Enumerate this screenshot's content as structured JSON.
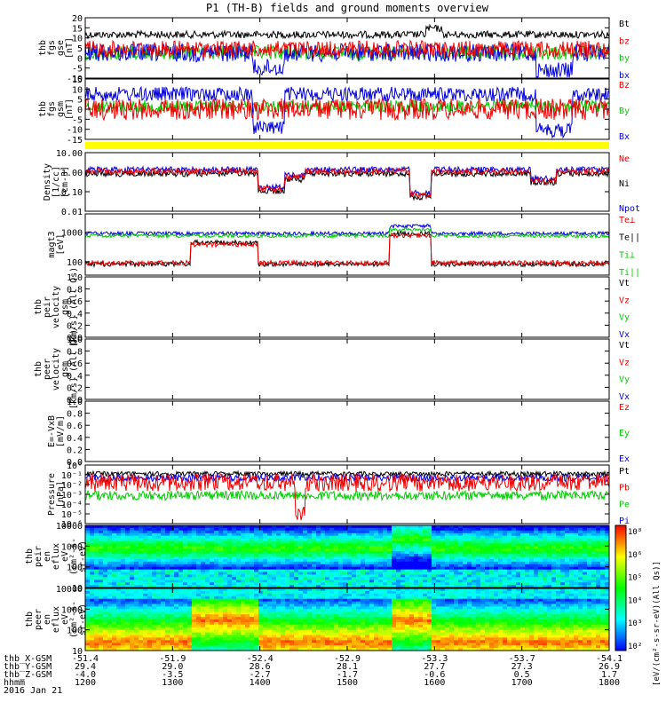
{
  "chart_data": {
    "type": "line",
    "title": "P1 (TH-B) fields and ground moments overview",
    "date": "2016 Jan 21",
    "x_ticks": [
      "1200",
      "1300",
      "1400",
      "1500",
      "1600",
      "1700",
      "1800"
    ],
    "ephemeris": [
      {
        "label": "thb_X-GSM",
        "values": [
          "-51.4",
          "-51.9",
          "-52.4",
          "-52.9",
          "-53.3",
          "-53.7",
          "-54.1"
        ]
      },
      {
        "label": "thb_Y-GSM",
        "values": [
          "29.4",
          "29.0",
          "28.6",
          "28.1",
          "27.7",
          "27.3",
          "26.9"
        ]
      },
      {
        "label": "thb_Z-GSM",
        "values": [
          "-4.0",
          "-3.5",
          "-2.7",
          "-1.7",
          "-0.6",
          "0.5",
          "1.7"
        ]
      },
      {
        "label": "hhmm",
        "values": [
          "1200",
          "1300",
          "1400",
          "1500",
          "1600",
          "1700",
          "1800"
        ]
      }
    ],
    "panels": [
      {
        "id": "fgs_gse",
        "ylabel": [
          "thb",
          "fgs",
          "gse",
          "[nT]"
        ],
        "ticks": [
          "20",
          "15",
          "10",
          "5",
          "0",
          "-5",
          "-10"
        ],
        "legend": [
          {
            "name": "Bt",
            "color": "#000000"
          },
          {
            "name": "bz",
            "color": "#ee0000"
          },
          {
            "name": "by",
            "color": "#00cc00"
          },
          {
            "name": "bx",
            "color": "#0000dd"
          }
        ]
      },
      {
        "id": "fgs_gsm",
        "ylabel": [
          "thb",
          "fgs",
          "gsm",
          "[nT]"
        ],
        "ticks": [
          "15",
          "10",
          "5",
          "0",
          "-5",
          "-10",
          "-15"
        ],
        "legend": [
          {
            "name": "Bz",
            "color": "#ee0000"
          },
          {
            "name": "By",
            "color": "#00cc00"
          },
          {
            "name": "Bx",
            "color": "#0000dd"
          }
        ]
      },
      {
        "id": "density",
        "ylabel": [
          "Density",
          "[1/cc]",
          "[cm-3]"
        ],
        "ticks": [
          "10.00",
          "1.00",
          "0.10",
          "0.01"
        ],
        "scale": "log",
        "legend": [
          {
            "name": "Ne",
            "color": "#ee0000"
          },
          {
            "name": "Ni",
            "color": "#000000"
          },
          {
            "name": "Npot",
            "color": "#0000dd"
          }
        ]
      },
      {
        "id": "temperature",
        "ylabel": [
          "magt3",
          "[eV]"
        ],
        "ticks": [
          "1000",
          "100"
        ],
        "scale": "log",
        "legend": [
          {
            "name": "Te⊥",
            "color": "#ee0000"
          },
          {
            "name": "Te||",
            "color": "#000000"
          },
          {
            "name": "Ti⊥",
            "color": "#00cc00"
          },
          {
            "name": "Ti||",
            "color": "#00cc00"
          }
        ]
      },
      {
        "id": "peir_velocity",
        "ylabel": [
          "thb",
          "peir",
          "velocity",
          "gsm",
          "[km/s] (All Qs)"
        ],
        "ticks": [
          "1.0",
          "0.8",
          "0.6",
          "0.4",
          "0.2",
          "0.0"
        ],
        "legend": [
          {
            "name": "Vt",
            "color": "#000000"
          },
          {
            "name": "Vz",
            "color": "#ee0000"
          },
          {
            "name": "Vy",
            "color": "#00cc00"
          },
          {
            "name": "Vx",
            "color": "#0000dd"
          }
        ]
      },
      {
        "id": "peer_velocity",
        "ylabel": [
          "thb",
          "peer",
          "velocity",
          "gsm",
          "[km/s] (All Qs)"
        ],
        "ticks": [
          "1.0",
          "0.8",
          "0.6",
          "0.4",
          "0.2",
          "0.0"
        ],
        "legend": [
          {
            "name": "Vt",
            "color": "#000000"
          },
          {
            "name": "Vz",
            "color": "#ee0000"
          },
          {
            "name": "Vy",
            "color": "#00cc00"
          },
          {
            "name": "Vx",
            "color": "#0000dd"
          }
        ]
      },
      {
        "id": "efield",
        "ylabel": [
          "E=-VxB",
          "[mV/m]"
        ],
        "ticks": [
          "1.0",
          "0.8",
          "0.6",
          "0.4",
          "0.2",
          "0.0"
        ],
        "legend": [
          {
            "name": "Ez",
            "color": "#ee0000"
          },
          {
            "name": "Ey",
            "color": "#00cc00"
          },
          {
            "name": "Ex",
            "color": "#0000dd"
          }
        ]
      },
      {
        "id": "pressure",
        "ylabel": [
          "Pressure",
          "[nPa]"
        ],
        "ticks": [
          "10⁰",
          "10⁻¹",
          "10⁻²",
          "10⁻³",
          "10⁻⁴",
          "10⁻⁵",
          "10⁻⁶"
        ],
        "scale": "log",
        "legend": [
          {
            "name": "Pt",
            "color": "#000000"
          },
          {
            "name": "Pb",
            "color": "#ee0000"
          },
          {
            "name": "Pe",
            "color": "#00cc00"
          },
          {
            "name": "Pi",
            "color": "#0000dd"
          }
        ]
      },
      {
        "id": "peir_eflux",
        "ylabel": [
          "thb",
          "peir",
          "en",
          "eflux",
          "eV",
          "(cm²-s-",
          "sr-eV)"
        ],
        "ticks": [
          "10000",
          "1000",
          "100",
          "10"
        ],
        "scale": "log"
      },
      {
        "id": "peer_eflux",
        "ylabel": [
          "thb",
          "peer",
          "en",
          "eflux",
          "eV",
          "(cm²-s-",
          "sr-eV)"
        ],
        "ticks": [
          "10000",
          "1000",
          "100",
          "10"
        ],
        "scale": "log"
      }
    ],
    "colorbar": {
      "label": "[eV/(cm²-s-sr-eV)(All Qs)]",
      "ticks": [
        "10⁸",
        "10⁶",
        "10⁵",
        "10⁴",
        "10³",
        "10²"
      ]
    }
  }
}
